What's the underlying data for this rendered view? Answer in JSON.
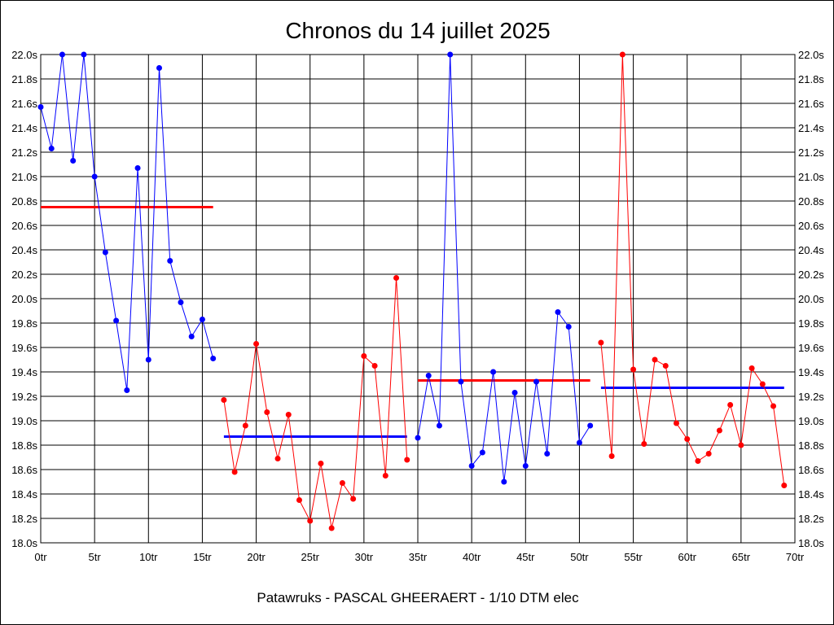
{
  "chart_data": {
    "type": "line",
    "title": "Chronos du 14 juillet 2025",
    "footer": "Patawruks - PASCAL GHEERAERT - 1/10 DTM elec",
    "xlim": [
      0,
      70
    ],
    "ylim": [
      18.0,
      22.0
    ],
    "x_ticks": [
      "0tr",
      "5tr",
      "10tr",
      "15tr",
      "20tr",
      "25tr",
      "30tr",
      "35tr",
      "40tr",
      "45tr",
      "50tr",
      "55tr",
      "60tr",
      "65tr",
      "70tr"
    ],
    "y_ticks": [
      "18.0s",
      "18.2s",
      "18.4s",
      "18.6s",
      "18.8s",
      "19.0s",
      "19.2s",
      "19.4s",
      "19.6s",
      "19.8s",
      "20.0s",
      "20.2s",
      "20.4s",
      "20.6s",
      "20.8s",
      "21.0s",
      "21.2s",
      "21.4s",
      "21.6s",
      "21.8s",
      "22.0s"
    ],
    "grid": true,
    "y_axis_both_sides": true,
    "series": [
      {
        "color": "#0000ff",
        "avg_color": "#ff0000",
        "start_lap": 0,
        "average": 20.75,
        "values": [
          21.57,
          21.23,
          22.0,
          21.13,
          22.0,
          21.0,
          20.38,
          19.82,
          19.25,
          21.07,
          19.5,
          21.89,
          20.31,
          19.97,
          19.69,
          19.83,
          19.51
        ]
      },
      {
        "color": "#ff0000",
        "avg_color": "#0000ff",
        "start_lap": 17,
        "average": 18.87,
        "values": [
          19.17,
          18.58,
          18.96,
          19.63,
          19.07,
          18.69,
          19.05,
          18.35,
          18.18,
          18.65,
          18.12,
          18.49,
          18.36,
          19.53,
          19.45,
          18.55,
          20.17,
          18.68
        ]
      },
      {
        "color": "#0000ff",
        "avg_color": "#ff0000",
        "start_lap": 35,
        "average": 19.33,
        "values": [
          18.86,
          19.37,
          18.96,
          22.0,
          19.32,
          18.63,
          18.74,
          19.4,
          18.5,
          19.23,
          18.63,
          19.32,
          18.73,
          19.89,
          19.77,
          18.82,
          18.96
        ]
      },
      {
        "color": "#ff0000",
        "avg_color": "#0000ff",
        "start_lap": 52,
        "average": 19.27,
        "values": [
          19.64,
          18.71,
          22.0,
          19.42,
          18.81,
          19.5,
          19.45,
          18.98,
          18.85,
          18.67,
          18.73,
          18.92,
          19.13,
          18.8,
          19.43,
          19.3,
          19.12,
          18.47
        ]
      }
    ]
  }
}
